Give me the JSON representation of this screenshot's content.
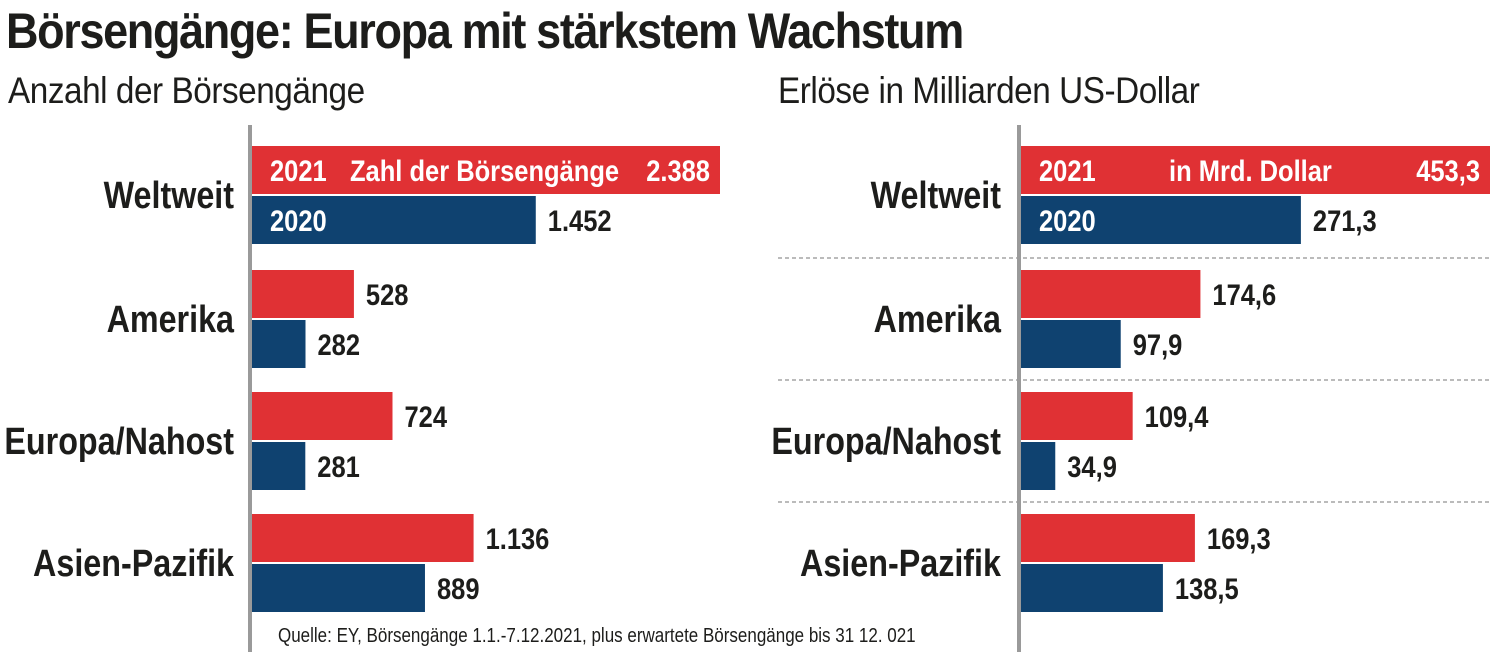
{
  "title": "Börsengänge: Europa mit stärkstem Wachstum",
  "source": "Quelle: EY, Börsengänge 1.1.-7.12.2021, plus erwartete Börsengänge bis 31 12. 021",
  "colors": {
    "y2021": "#e03134",
    "y2020": "#0f4270",
    "axis": "#9a9a9a",
    "text": "#1d1d1b"
  },
  "chart_data": [
    {
      "type": "bar",
      "orientation": "horizontal",
      "title": "Anzahl der Börsengänge",
      "categories": [
        "Weltweit",
        "Amerika",
        "Europa/Nahost",
        "Asien-Pazifik"
      ],
      "series": [
        {
          "name": "2021",
          "values": [
            2388,
            528,
            724,
            1136
          ],
          "labels": [
            "2.388",
            "528",
            "724",
            "1.136"
          ],
          "inner_label": "Zahl der Börsengänge"
        },
        {
          "name": "2020",
          "values": [
            1452,
            282,
            281,
            889
          ],
          "labels": [
            "1.452",
            "282",
            "281",
            "889"
          ]
        }
      ],
      "xlim": [
        0,
        2388
      ],
      "grid": false,
      "separators": false
    },
    {
      "type": "bar",
      "orientation": "horizontal",
      "title": "Erlöse in Milliarden US-Dollar",
      "categories": [
        "Weltweit",
        "Amerika",
        "Europa/Nahost",
        "Asien-Pazifik"
      ],
      "series": [
        {
          "name": "2021",
          "values": [
            453.3,
            174.6,
            109.4,
            169.3
          ],
          "labels": [
            "453,3",
            "174,6",
            "109,4",
            "169,3"
          ],
          "inner_label": "in Mrd. Dollar"
        },
        {
          "name": "2020",
          "values": [
            271.3,
            97.9,
            34.9,
            138.5
          ],
          "labels": [
            "271,3",
            "97,9",
            "34,9",
            "138,5"
          ]
        }
      ],
      "xlim": [
        0,
        453.3
      ],
      "grid": false,
      "separators": true
    }
  ]
}
